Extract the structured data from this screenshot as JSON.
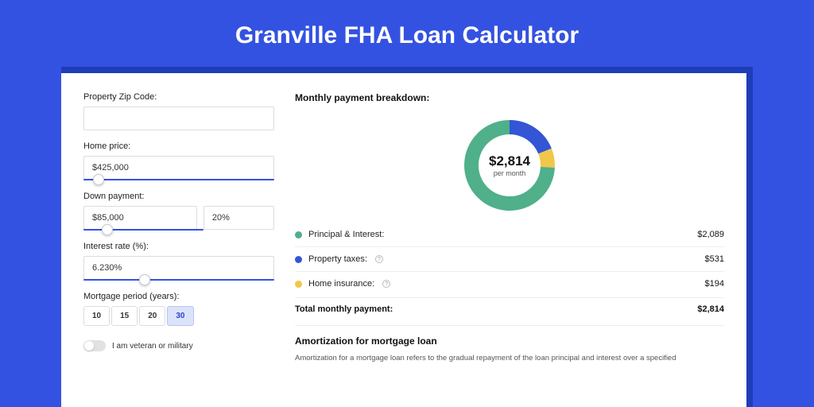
{
  "title": "Granville FHA Loan Calculator",
  "colors": {
    "page_bg": "#3452e1",
    "accent": "#3452e1",
    "principal": "#4fb08a",
    "taxes": "#3355d6",
    "insurance": "#f1c74a"
  },
  "form": {
    "zip": {
      "label": "Property Zip Code:",
      "value": ""
    },
    "home_price": {
      "label": "Home price:",
      "value": "$425,000",
      "slider_pos_pct": 8
    },
    "down_payment": {
      "label": "Down payment:",
      "amount": "$85,000",
      "percent": "20%",
      "slider_pos_pct": 20
    },
    "interest_rate": {
      "label": "Interest rate (%):",
      "value": "6.230%",
      "slider_pos_pct": 32
    },
    "mortgage_period": {
      "label": "Mortgage period (years):",
      "options": [
        "10",
        "15",
        "20",
        "30"
      ],
      "selected": "30"
    },
    "veteran": {
      "label": "I am veteran or military",
      "checked": false
    }
  },
  "breakdown": {
    "title": "Monthly payment breakdown:",
    "center_value": "$2,814",
    "center_label": "per month",
    "items": [
      {
        "label": "Principal & Interest:",
        "value": "$2,089",
        "amount": 2089,
        "color": "#4fb08a",
        "info": false
      },
      {
        "label": "Property taxes:",
        "value": "$531",
        "amount": 531,
        "color": "#3355d6",
        "info": true
      },
      {
        "label": "Home insurance:",
        "value": "$194",
        "amount": 194,
        "color": "#f1c74a",
        "info": true
      }
    ],
    "total_label": "Total monthly payment:",
    "total_value": "$2,814",
    "total_amount": 2814
  },
  "amortization": {
    "title": "Amortization for mortgage loan",
    "body": "Amortization for a mortgage loan refers to the gradual repayment of the loan principal and interest over a specified"
  }
}
